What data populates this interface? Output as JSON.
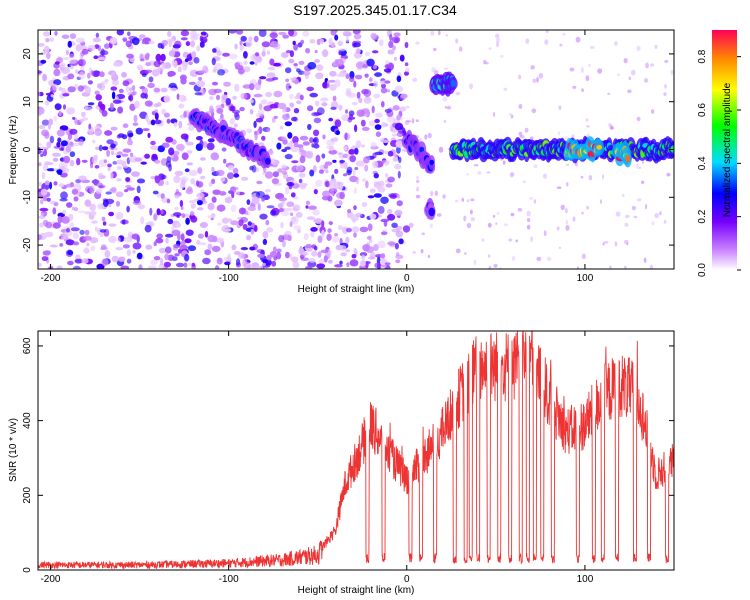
{
  "title": "S197.2025.345.01.17.C34",
  "chart_data": [
    {
      "type": "heatmap",
      "title": "",
      "xlabel": "Height of straight line (km)",
      "ylabel": "Frequency (Hz)",
      "xlim": [
        -207,
        150
      ],
      "ylim": [
        -25,
        25
      ],
      "x_ticks": [
        -200,
        -100,
        0,
        100
      ],
      "y_ticks": [
        -20,
        -10,
        0,
        10,
        20
      ],
      "colorbar": {
        "label": "Normalized spectral amplitude",
        "range": [
          0.0,
          0.9
        ],
        "ticks": [
          0.0,
          0.2,
          0.4,
          0.6,
          0.8
        ],
        "colormap": [
          "#ffffff",
          "#cc88ff",
          "#7700ff",
          "#0000ff",
          "#00ddff",
          "#00ff00",
          "#ffff00",
          "#ff8800",
          "#ff0055"
        ]
      },
      "features": [
        {
          "x": [
            -120,
            -78
          ],
          "y": [
            7,
            -2
          ],
          "level": 0.3
        },
        {
          "x": [
            0,
            14
          ],
          "y": [
            2,
            -3
          ],
          "level": 0.3
        },
        {
          "x": [
            12,
            14
          ],
          "y": [
            -12,
            -12
          ],
          "level": 0.25
        },
        {
          "x": [
            15,
            26
          ],
          "y": [
            14,
            14
          ],
          "level": 0.45
        },
        {
          "x": [
            26,
            150
          ],
          "y": [
            0,
            0
          ],
          "level": 0.55
        },
        {
          "x": [
            90,
            108
          ],
          "y": [
            0,
            0
          ],
          "level": 0.85
        },
        {
          "x": [
            118,
            124
          ],
          "y": [
            -1,
            -1
          ],
          "level": 0.85
        }
      ]
    },
    {
      "type": "line",
      "title": "",
      "xlabel": "Height of straight line (km)",
      "ylabel": "SNR (10 * v/v)",
      "xlim": [
        -207,
        150
      ],
      "ylim": [
        0,
        640
      ],
      "x_ticks": [
        -200,
        -100,
        0,
        100
      ],
      "y_ticks": [
        0,
        200,
        400,
        600
      ],
      "color": "#ee3333",
      "envelope": [
        {
          "x": -207,
          "y": 15
        },
        {
          "x": -150,
          "y": 15
        },
        {
          "x": -100,
          "y": 20
        },
        {
          "x": -70,
          "y": 30
        },
        {
          "x": -50,
          "y": 45
        },
        {
          "x": -40,
          "y": 110
        },
        {
          "x": -35,
          "y": 230
        },
        {
          "x": -20,
          "y": 400
        },
        {
          "x": -10,
          "y": 320
        },
        {
          "x": 0,
          "y": 250
        },
        {
          "x": 10,
          "y": 310
        },
        {
          "x": 20,
          "y": 380
        },
        {
          "x": 30,
          "y": 480
        },
        {
          "x": 40,
          "y": 560
        },
        {
          "x": 50,
          "y": 560
        },
        {
          "x": 60,
          "y": 560
        },
        {
          "x": 70,
          "y": 590
        },
        {
          "x": 80,
          "y": 470
        },
        {
          "x": 90,
          "y": 380
        },
        {
          "x": 100,
          "y": 400
        },
        {
          "x": 110,
          "y": 480
        },
        {
          "x": 120,
          "y": 510
        },
        {
          "x": 130,
          "y": 480
        },
        {
          "x": 140,
          "y": 260
        },
        {
          "x": 150,
          "y": 300
        }
      ],
      "dropouts": [
        -22,
        -13,
        2,
        8,
        16,
        27,
        33,
        36,
        40,
        46,
        52,
        58,
        64,
        68,
        72,
        76,
        82,
        96,
        105,
        110,
        118,
        128,
        136,
        146
      ],
      "dropout_level": 30
    }
  ]
}
